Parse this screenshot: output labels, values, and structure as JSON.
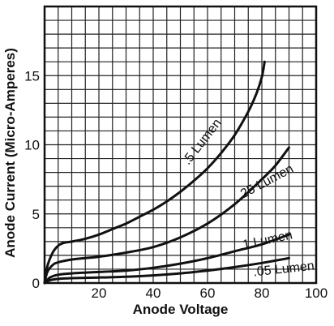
{
  "chart_data": {
    "type": "line",
    "title": "",
    "xlabel": "Anode Voltage",
    "ylabel": "Anode Current (Micro-Amperes)",
    "xlim": [
      0,
      100
    ],
    "ylim": [
      0,
      20
    ],
    "xticks": [
      20,
      40,
      60,
      80,
      100
    ],
    "yticks": [
      0,
      5,
      10,
      15
    ],
    "grid": true,
    "series": [
      {
        "name": ".5 Lumen",
        "x": [
          0,
          1,
          3,
          5,
          7,
          10,
          15,
          20,
          25,
          30,
          35,
          40,
          45,
          50,
          55,
          60,
          65,
          70,
          75,
          78,
          80,
          81
        ],
        "y": [
          0,
          1.2,
          2.2,
          2.7,
          2.9,
          3.0,
          3.2,
          3.5,
          3.9,
          4.3,
          4.8,
          5.3,
          5.9,
          6.6,
          7.4,
          8.3,
          9.4,
          10.7,
          12.4,
          13.7,
          14.9,
          16.0
        ]
      },
      {
        "name": ".25 Lumen",
        "x": [
          0,
          1,
          3,
          5,
          10,
          15,
          20,
          30,
          40,
          50,
          60,
          70,
          80,
          85,
          90
        ],
        "y": [
          0,
          0.8,
          1.3,
          1.5,
          1.7,
          1.8,
          1.9,
          2.2,
          2.6,
          3.3,
          4.3,
          5.7,
          7.5,
          8.5,
          9.8
        ]
      },
      {
        "name": ".1 Lumen",
        "x": [
          0,
          2,
          5,
          10,
          20,
          30,
          40,
          50,
          60,
          70,
          80,
          90
        ],
        "y": [
          0,
          0.4,
          0.6,
          0.7,
          0.8,
          0.9,
          1.1,
          1.4,
          1.8,
          2.3,
          2.8,
          3.5
        ]
      },
      {
        "name": ".05 Lumen",
        "x": [
          0,
          2,
          5,
          10,
          20,
          30,
          40,
          50,
          60,
          70,
          80,
          90
        ],
        "y": [
          0,
          0.2,
          0.3,
          0.35,
          0.4,
          0.45,
          0.55,
          0.7,
          0.9,
          1.15,
          1.45,
          1.8
        ]
      }
    ]
  }
}
